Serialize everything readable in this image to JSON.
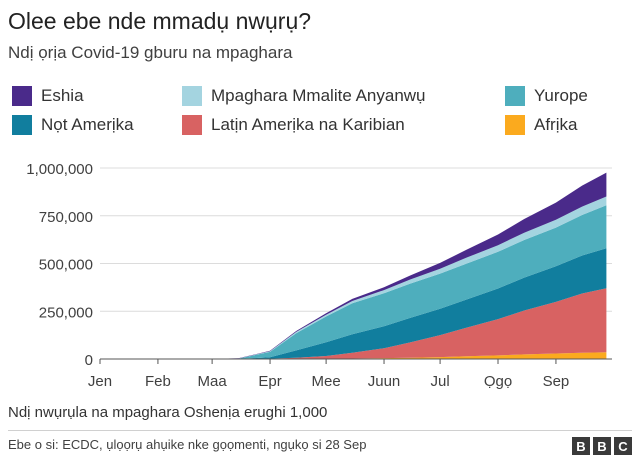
{
  "header": {
    "title": "Olee ebe nde mmadụ nwụrụ?",
    "subtitle": "Ndị ọrịa Covid-19 gburu na mpaghara"
  },
  "footer": {
    "note": "Ndị nwụrụla na mpaghara Oshenịa erughi 1,000",
    "source": "Ebe o si: ECDC, ụlọọrụ ahụike nke gọọmenti, ngụkọ si 28 Sep",
    "logo_letters": [
      "B",
      "B",
      "C"
    ]
  },
  "chart_data": {
    "type": "area",
    "stacked": true,
    "x_labels": [
      "Jen",
      "Feb",
      "Maa",
      "Epr",
      "Mee",
      "Juun",
      "Jul",
      "Ọgọ",
      "Sep"
    ],
    "x": [
      "2020-01-01",
      "2020-01-15",
      "2020-02-01",
      "2020-02-15",
      "2020-03-01",
      "2020-03-15",
      "2020-04-01",
      "2020-04-15",
      "2020-05-01",
      "2020-05-15",
      "2020-06-01",
      "2020-06-15",
      "2020-07-01",
      "2020-07-15",
      "2020-08-01",
      "2020-08-15",
      "2020-09-01",
      "2020-09-15",
      "2020-09-28"
    ],
    "yticks": [
      "0",
      "250,000",
      "500,000",
      "750,000",
      "1,000,000"
    ],
    "ylim": [
      0,
      1000000
    ],
    "grid": true,
    "legend_position": "top",
    "series": [
      {
        "name": "Afrịka",
        "color": "#fbaa1e",
        "values": [
          0,
          0,
          0,
          0,
          0,
          100,
          500,
          1000,
          1700,
          2800,
          4500,
          7000,
          10000,
          14000,
          19000,
          24000,
          29000,
          33000,
          35000
        ]
      },
      {
        "name": "Latịn Amerịka na Karibian",
        "color": "#d86262",
        "values": [
          0,
          0,
          0,
          0,
          0,
          100,
          1500,
          6000,
          14000,
          30000,
          52000,
          80000,
          115000,
          150000,
          190000,
          230000,
          270000,
          310000,
          335000
        ]
      },
      {
        "name": "Nọt Amerịka",
        "color": "#117e9e",
        "values": [
          0,
          0,
          0,
          0,
          0,
          100,
          7000,
          38000,
          72000,
          97000,
          115000,
          128000,
          138000,
          147000,
          160000,
          172000,
          187000,
          199000,
          210000
        ]
      },
      {
        "name": "Yurope",
        "color": "#4eaebd",
        "values": [
          0,
          0,
          0,
          0,
          0,
          2000,
          28000,
          90000,
          135000,
          162000,
          173000,
          180000,
          184000,
          188000,
          192000,
          197000,
          202000,
          212000,
          225000
        ]
      },
      {
        "name": "Mpaghara Mmalite Anyanwụ",
        "color": "#a4d4e0",
        "values": [
          0,
          0,
          0,
          0,
          0,
          500,
          3500,
          7000,
          9000,
          12000,
          16000,
          21000,
          26000,
          31000,
          35000,
          38000,
          41000,
          44000,
          46000
        ]
      },
      {
        "name": "Eshia",
        "color": "#4a2a8a",
        "values": [
          0,
          0,
          0,
          50,
          500,
          1000,
          2500,
          4800,
          7500,
          11000,
          15000,
          21000,
          30000,
          41000,
          56000,
          72000,
          90000,
          110000,
          125000
        ]
      }
    ],
    "legend_order": [
      "Eshia",
      "Mpaghara Mmalite Anyanwụ",
      "Yurope",
      "Nọt Amerịka",
      "Latịn Amerịka na Karibian",
      "Afrịka"
    ]
  }
}
